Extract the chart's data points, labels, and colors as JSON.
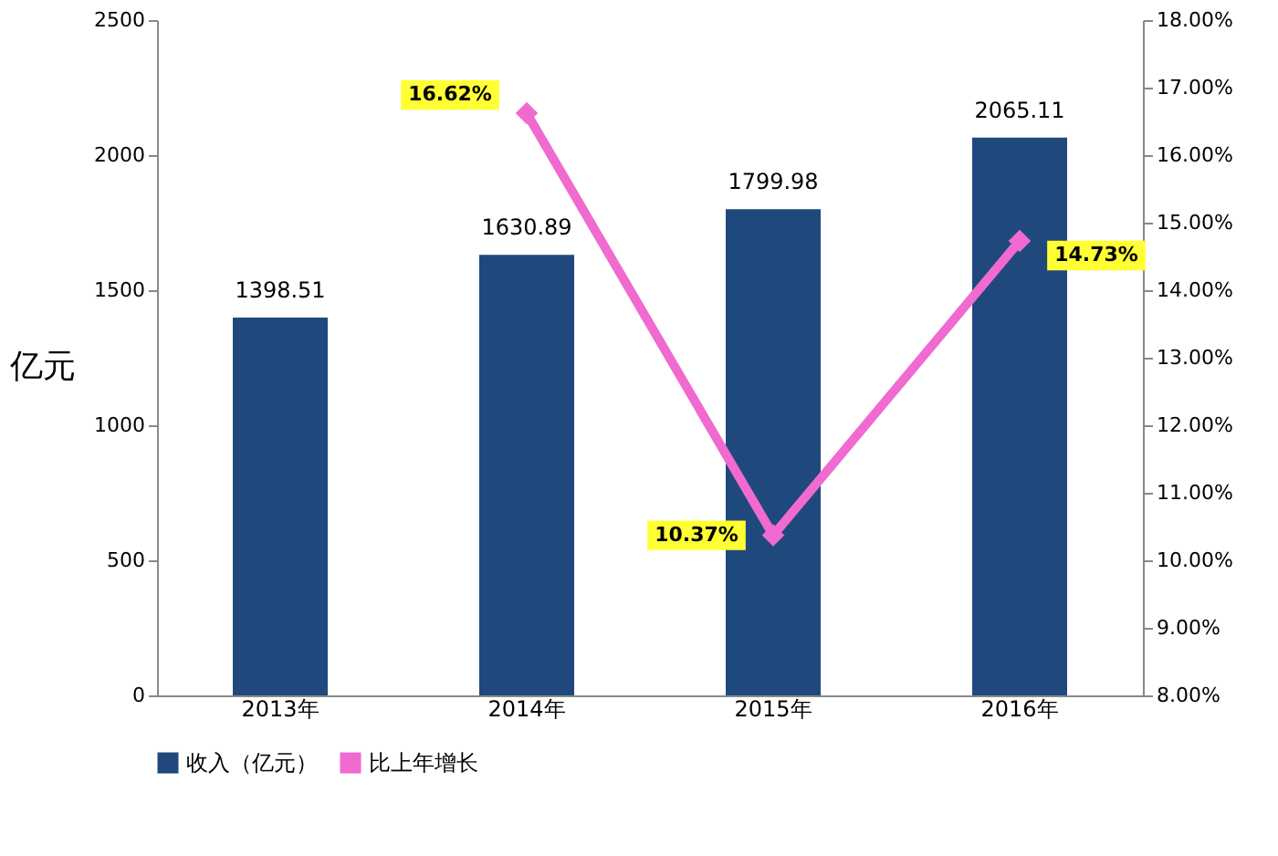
{
  "chart_data": {
    "type": "bar",
    "categories": [
      "2013年",
      "2014年",
      "2015年",
      "2016年"
    ],
    "ylabel": "亿元",
    "ylim": [
      0,
      2500
    ],
    "yticks": [
      0,
      500,
      1000,
      1500,
      2000,
      2500
    ],
    "legend": "bottom",
    "y2lim": [
      8,
      18
    ],
    "y2ticks": [
      {
        "value": 8,
        "label": "8.00%"
      },
      {
        "value": 9,
        "label": "9.00%"
      },
      {
        "value": 10,
        "label": "10.00%"
      },
      {
        "value": 11,
        "label": "11.00%"
      },
      {
        "value": 12,
        "label": "12.00%"
      },
      {
        "value": 13,
        "label": "13.00%"
      },
      {
        "value": 14,
        "label": "14.00%"
      },
      {
        "value": 15,
        "label": "15.00%"
      },
      {
        "value": 16,
        "label": "16.00%"
      },
      {
        "value": 17,
        "label": "17.00%"
      },
      {
        "value": 18,
        "label": "18.00%"
      }
    ],
    "series": [
      {
        "name": "收入（亿元）",
        "color": "#1f497d",
        "values": [
          1398.51,
          1630.89,
          1799.98,
          2065.11
        ],
        "data_labels": true
      },
      {
        "name": "比上年增长",
        "color": "#f06ad0",
        "type": "line",
        "axis": "y2",
        "marker": "diamond",
        "values": [
          null,
          16.62,
          10.37,
          14.73
        ],
        "value_labels": [
          null,
          "16.62%",
          "10.37%",
          "14.73%"
        ]
      }
    ],
    "grid": false
  }
}
